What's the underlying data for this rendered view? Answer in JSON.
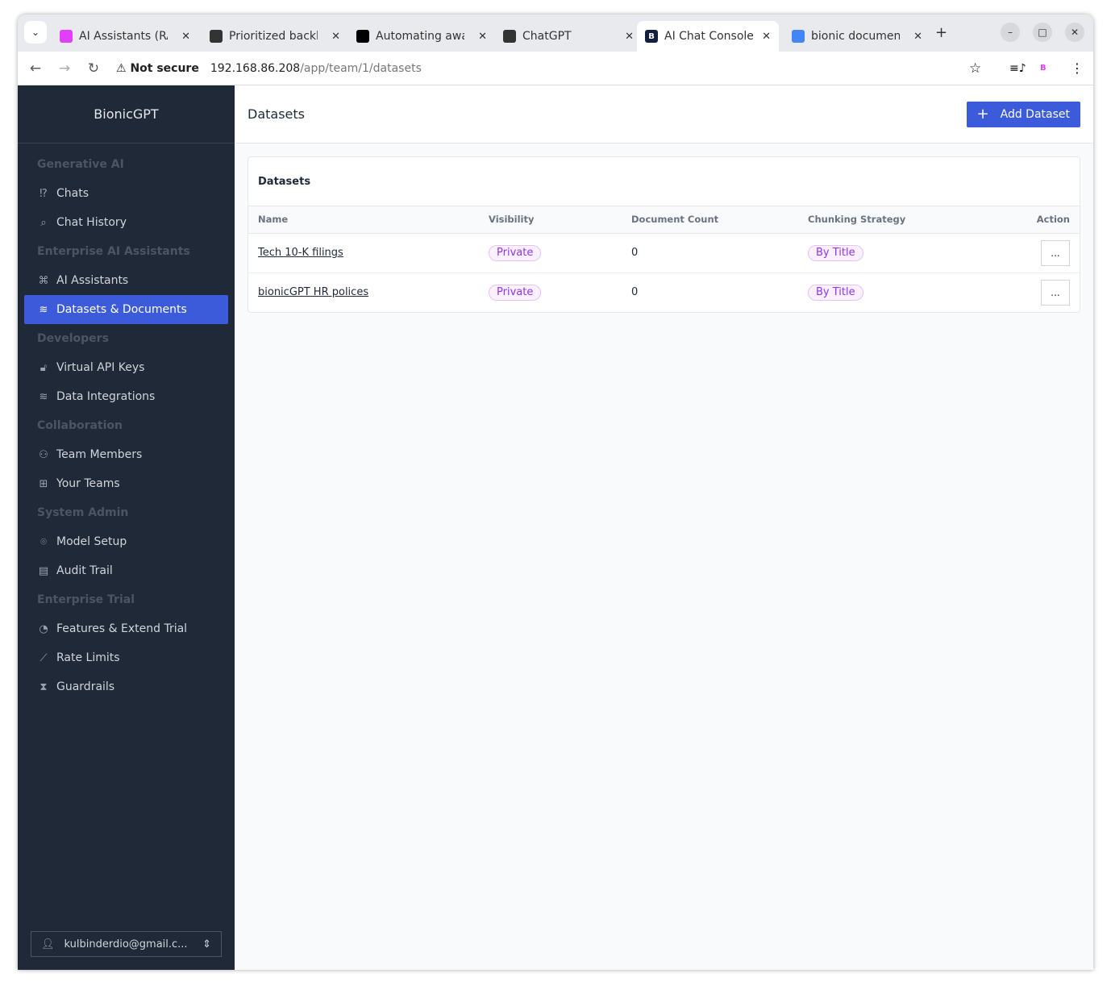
{
  "browser": {
    "tabs": [
      {
        "title": "AI Assistants (RAG)",
        "icon": "bionic-icon",
        "color": "#e040fb"
      },
      {
        "title": "Prioritized backlog",
        "icon": "github-icon",
        "color": "#333333"
      },
      {
        "title": "Automating away",
        "icon": "medium-icon",
        "color": "#000000"
      },
      {
        "title": "ChatGPT",
        "icon": "openai-icon",
        "color": "#333333"
      },
      {
        "title": "AI Chat Console",
        "icon": "bionic-b-icon",
        "color": "#0f1f3d"
      },
      {
        "title": "bionic documentation",
        "icon": "docs-icon",
        "color": "#4285f4"
      }
    ],
    "security": "Not secure",
    "url_host": "192.168.86.208",
    "url_path": "/app/team/1/datasets"
  },
  "sidebar": {
    "brand": "BionicGPT",
    "sections": [
      {
        "label": "Generative AI",
        "items": [
          {
            "label": "Chats",
            "icon": "chat-icon"
          },
          {
            "label": "Chat History",
            "icon": "search-icon"
          }
        ]
      },
      {
        "label": "Enterprise AI Assistants",
        "items": [
          {
            "label": "AI Assistants",
            "icon": "command-icon"
          },
          {
            "label": "Datasets & Documents",
            "icon": "layers-icon",
            "active": true
          }
        ]
      },
      {
        "label": "Developers",
        "items": [
          {
            "label": "Virtual API Keys",
            "icon": "lock-icon"
          },
          {
            "label": "Data Integrations",
            "icon": "layers-icon"
          }
        ]
      },
      {
        "label": "Collaboration",
        "items": [
          {
            "label": "Team Members",
            "icon": "users-icon"
          },
          {
            "label": "Your Teams",
            "icon": "grid-icon"
          }
        ]
      },
      {
        "label": "System Admin",
        "items": [
          {
            "label": "Model Setup",
            "icon": "scan-icon"
          },
          {
            "label": "Audit Trail",
            "icon": "clipboard-icon"
          }
        ]
      },
      {
        "label": "Enterprise Trial",
        "items": [
          {
            "label": "Features & Extend Trial",
            "icon": "gauge-icon"
          },
          {
            "label": "Rate Limits",
            "icon": "chart-icon"
          },
          {
            "label": "Guardrails",
            "icon": "hourglass-icon"
          }
        ]
      }
    ],
    "user": "kulbinderdio@gmail.c..."
  },
  "header": {
    "title": "Datasets",
    "add_label": "Add Dataset"
  },
  "card": {
    "title": "Datasets",
    "columns": [
      "Name",
      "Visibility",
      "Document Count",
      "Chunking Strategy",
      "Action"
    ],
    "rows": [
      {
        "name": "Tech 10-K filings",
        "visibility": "Private",
        "count": "0",
        "strategy": "By Title",
        "action": "..."
      },
      {
        "name": "bionicGPT HR polices",
        "visibility": "Private",
        "count": "0",
        "strategy": "By Title",
        "action": "..."
      }
    ]
  }
}
